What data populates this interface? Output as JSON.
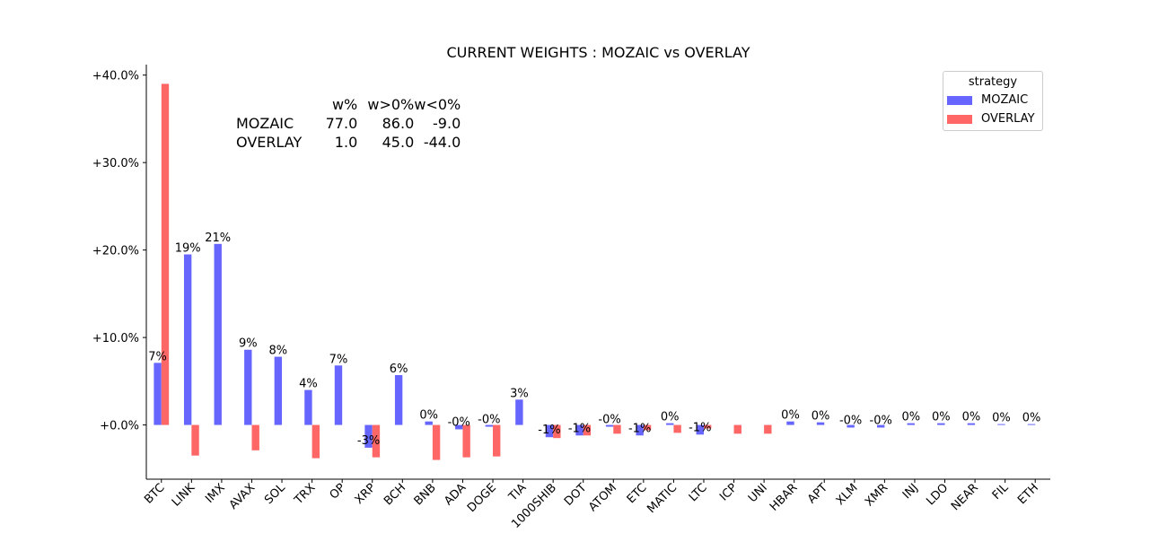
{
  "chart_data": {
    "type": "bar",
    "title": "CURRENT WEIGHTS : MOZAIC vs OVERLAY",
    "legend": {
      "title": "strategy",
      "placement": "top-right"
    },
    "categories": [
      "BTC",
      "LINK",
      "IMX",
      "AVAX",
      "SOL",
      "TRX",
      "OP",
      "XRP",
      "BCH",
      "BNB",
      "ADA",
      "DOGE",
      "TIA",
      "1000SHIB",
      "DOT",
      "ATOM",
      "ETC",
      "MATIC",
      "LTC",
      "ICP",
      "UNI",
      "HBAR",
      "APT",
      "XLM",
      "XMR",
      "INJ",
      "LDO",
      "NEAR",
      "FIL",
      "ETH"
    ],
    "series": [
      {
        "name": "MOZAIC",
        "color": "#6666ff",
        "values": [
          7.1,
          19.5,
          20.7,
          8.6,
          7.8,
          4.0,
          6.8,
          -2.6,
          5.7,
          0.4,
          -0.5,
          -0.2,
          2.9,
          -1.4,
          -1.2,
          -0.2,
          -1.2,
          0.2,
          -1.1,
          0.0,
          0.0,
          0.4,
          0.3,
          -0.3,
          -0.3,
          0.2,
          0.2,
          0.2,
          0.1,
          0.1
        ],
        "data_labels": [
          "7%",
          "19%",
          "21%",
          "9%",
          "8%",
          "4%",
          "7%",
          "-3%",
          "6%",
          "0%",
          "-0%",
          "-0%",
          "3%",
          "-1%",
          "-1%",
          "-0%",
          "-1%",
          "0%",
          "-1%",
          "",
          "",
          "0%",
          "0%",
          "-0%",
          "-0%",
          "0%",
          "0%",
          "0%",
          "0%",
          "0%"
        ]
      },
      {
        "name": "OVERLAY",
        "color": "#ff6666",
        "values": [
          39.0,
          -3.5,
          0.0,
          -2.9,
          0.0,
          -3.8,
          0.0,
          -3.7,
          0.0,
          -4.0,
          -3.7,
          -3.6,
          0.0,
          -1.5,
          -1.2,
          -1.0,
          -0.6,
          -0.9,
          -0.4,
          -1.0,
          -1.0,
          0.0,
          0.0,
          0.0,
          0.0,
          0.0,
          0.0,
          0.0,
          0.0,
          0.0
        ]
      }
    ],
    "y_ticks": [
      0,
      10,
      20,
      30,
      40
    ],
    "y_tick_labels": [
      "+0.0%",
      "+10.0%",
      "+20.0%",
      "+30.0%",
      "+40.0%"
    ],
    "ylim": [
      -6.2,
      41.2
    ],
    "grid": false
  },
  "stats_table": {
    "columns": [
      "w%",
      "w>0%",
      "w<0%"
    ],
    "rows": [
      {
        "name": "MOZAIC",
        "values": [
          "77.0",
          "86.0",
          "-9.0"
        ]
      },
      {
        "name": "OVERLAY",
        "values": [
          "1.0",
          "45.0",
          "-44.0"
        ]
      }
    ]
  }
}
